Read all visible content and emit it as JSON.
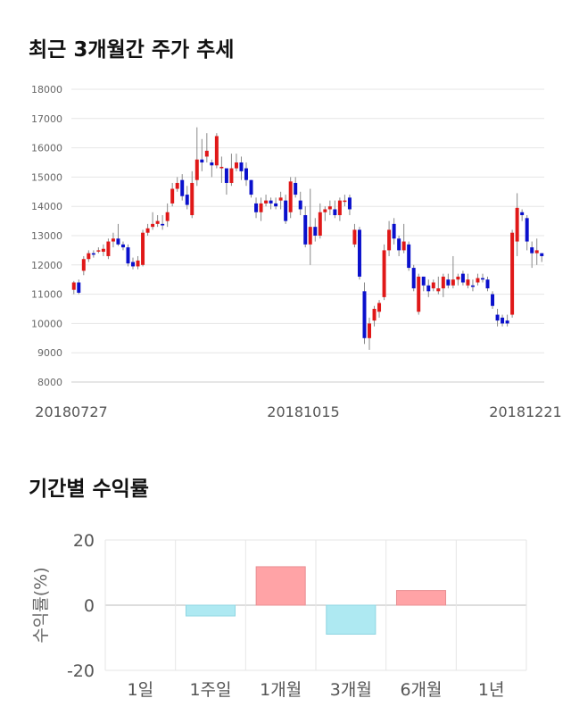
{
  "titles": {
    "price_chart": "최근 3개월간 주가 추세",
    "return_chart": "기간별 수익률"
  },
  "colors": {
    "up": "#e01818",
    "down": "#0a10cc",
    "positive_bar": "#ffa3a6",
    "negative_bar": "#aee9f2",
    "grid": "#e6e6e6"
  },
  "chart_data": [
    {
      "type": "candlestick",
      "title": "최근 3개월간 주가 추세",
      "ylim": [
        8000,
        18000
      ],
      "y_ticks": [
        8000,
        9000,
        10000,
        11000,
        12000,
        13000,
        14000,
        15000,
        16000,
        17000,
        18000
      ],
      "x_tick_labels": [
        "20180727",
        "20181015",
        "20181221"
      ],
      "grid": true,
      "candles": [
        [
          11150,
          11400,
          11450,
          11000
        ],
        [
          11400,
          11050,
          11500,
          11000
        ],
        [
          11800,
          12200,
          12300,
          11650
        ],
        [
          12200,
          12400,
          12500,
          12100
        ],
        [
          12400,
          12350,
          12500,
          12250
        ],
        [
          12500,
          12500,
          12600,
          12400
        ],
        [
          12450,
          12550,
          12700,
          12300
        ],
        [
          12300,
          12800,
          12900,
          12200
        ],
        [
          12800,
          12900,
          13100,
          12600
        ],
        [
          12900,
          12700,
          13400,
          12650
        ],
        [
          12700,
          12600,
          12800,
          12500
        ],
        [
          12600,
          12050,
          12700,
          11950
        ],
        [
          12100,
          11950,
          12250,
          11850
        ],
        [
          11950,
          12150,
          12300,
          11850
        ],
        [
          12000,
          13100,
          13200,
          11950
        ],
        [
          13100,
          13250,
          13400,
          13000
        ],
        [
          13300,
          13400,
          13800,
          13200
        ],
        [
          13400,
          13500,
          13700,
          13300
        ],
        [
          13400,
          13350,
          13700,
          13200
        ],
        [
          13500,
          13800,
          14100,
          13300
        ],
        [
          14100,
          14600,
          14800,
          14000
        ],
        [
          14600,
          14800,
          15000,
          14500
        ],
        [
          14900,
          14350,
          15100,
          14200
        ],
        [
          14400,
          14050,
          14700,
          13900
        ],
        [
          13700,
          14800,
          15200,
          13600
        ],
        [
          14900,
          15600,
          16700,
          14700
        ],
        [
          15600,
          15500,
          16300,
          15200
        ],
        [
          15700,
          15900,
          16500,
          15500
        ],
        [
          15500,
          15400,
          15600,
          15000
        ],
        [
          15400,
          16400,
          16500,
          15300
        ],
        [
          15300,
          15350,
          15700,
          14800
        ],
        [
          15300,
          14800,
          15200,
          14400
        ],
        [
          14800,
          15300,
          15800,
          14700
        ],
        [
          15300,
          15500,
          15800,
          15200
        ],
        [
          15500,
          15200,
          15700,
          14900
        ],
        [
          15300,
          14900,
          15500,
          14700
        ],
        [
          14900,
          14400,
          14900,
          14300
        ],
        [
          14100,
          13800,
          14300,
          13600
        ],
        [
          13800,
          14100,
          14300,
          13500
        ],
        [
          14100,
          14200,
          14400,
          14000
        ],
        [
          14200,
          14100,
          14300,
          13900
        ],
        [
          14100,
          14000,
          14300,
          13900
        ],
        [
          14200,
          14300,
          14500,
          13900
        ],
        [
          14200,
          13500,
          14400,
          13400
        ],
        [
          13800,
          14850,
          15000,
          13600
        ],
        [
          14800,
          14400,
          15000,
          14300
        ],
        [
          14200,
          13900,
          14500,
          13700
        ],
        [
          13700,
          12700,
          14000,
          12600
        ],
        [
          12700,
          13300,
          14600,
          12000
        ],
        [
          13300,
          13000,
          13600,
          12800
        ],
        [
          13000,
          13800,
          14100,
          12900
        ],
        [
          13800,
          13900,
          14000,
          13500
        ],
        [
          13900,
          14000,
          14200,
          13700
        ],
        [
          13900,
          13700,
          14200,
          13600
        ],
        [
          13700,
          14200,
          14300,
          13500
        ],
        [
          14200,
          14200,
          14400,
          14000
        ],
        [
          14300,
          13900,
          14400,
          13700
        ],
        [
          12700,
          13200,
          13400,
          12600
        ],
        [
          13200,
          11600,
          13300,
          11500
        ],
        [
          11100,
          9500,
          11400,
          9300
        ],
        [
          9500,
          10000,
          10200,
          9100
        ],
        [
          10100,
          10500,
          10600,
          9900
        ],
        [
          10400,
          10700,
          10800,
          10200
        ],
        [
          10900,
          12500,
          12700,
          10800
        ],
        [
          12500,
          13200,
          13500,
          12300
        ],
        [
          13400,
          12900,
          13600,
          12700
        ],
        [
          12900,
          12500,
          13000,
          12300
        ],
        [
          12500,
          12800,
          13400,
          12400
        ],
        [
          12700,
          11900,
          12800,
          11800
        ],
        [
          11900,
          11200,
          12000,
          11100
        ],
        [
          10400,
          11600,
          11700,
          10300
        ],
        [
          11600,
          11300,
          11600,
          11100
        ],
        [
          11300,
          11100,
          11500,
          10900
        ],
        [
          11200,
          11400,
          11500,
          11100
        ],
        [
          11100,
          11200,
          11600,
          11000
        ],
        [
          11200,
          11600,
          11700,
          10900
        ],
        [
          11500,
          11300,
          11700,
          11200
        ],
        [
          11300,
          11500,
          12300,
          11200
        ],
        [
          11500,
          11600,
          11700,
          11300
        ],
        [
          11700,
          11400,
          11800,
          11300
        ],
        [
          11300,
          11500,
          11700,
          11200
        ],
        [
          11300,
          11250,
          11500,
          11100
        ],
        [
          11400,
          11550,
          11700,
          11300
        ],
        [
          11550,
          11500,
          11700,
          11400
        ],
        [
          11500,
          11200,
          11600,
          11100
        ],
        [
          11000,
          10600,
          11100,
          10500
        ],
        [
          10300,
          10100,
          10500,
          9900
        ],
        [
          10200,
          10000,
          10300,
          9900
        ],
        [
          10100,
          10000,
          10300,
          9900
        ],
        [
          10300,
          13100,
          13200,
          10200
        ],
        [
          12800,
          13950,
          14450,
          12300
        ],
        [
          13800,
          13700,
          13900,
          13500
        ],
        [
          13600,
          12800,
          13700,
          12500
        ],
        [
          12600,
          12400,
          12800,
          11900
        ],
        [
          12400,
          12500,
          12900,
          12000
        ],
        [
          12400,
          12300,
          12400,
          12100
        ]
      ]
    },
    {
      "type": "bar",
      "ylabel": "수익률(%)",
      "ylim": [
        -20,
        20
      ],
      "y_ticks": [
        -20,
        0,
        20
      ],
      "categories": [
        "1일",
        "1주일",
        "1개월",
        "3개월",
        "6개월",
        "1년"
      ],
      "values": [
        0,
        -3.3,
        11.8,
        -8.9,
        4.5,
        0
      ],
      "grid": true
    }
  ]
}
